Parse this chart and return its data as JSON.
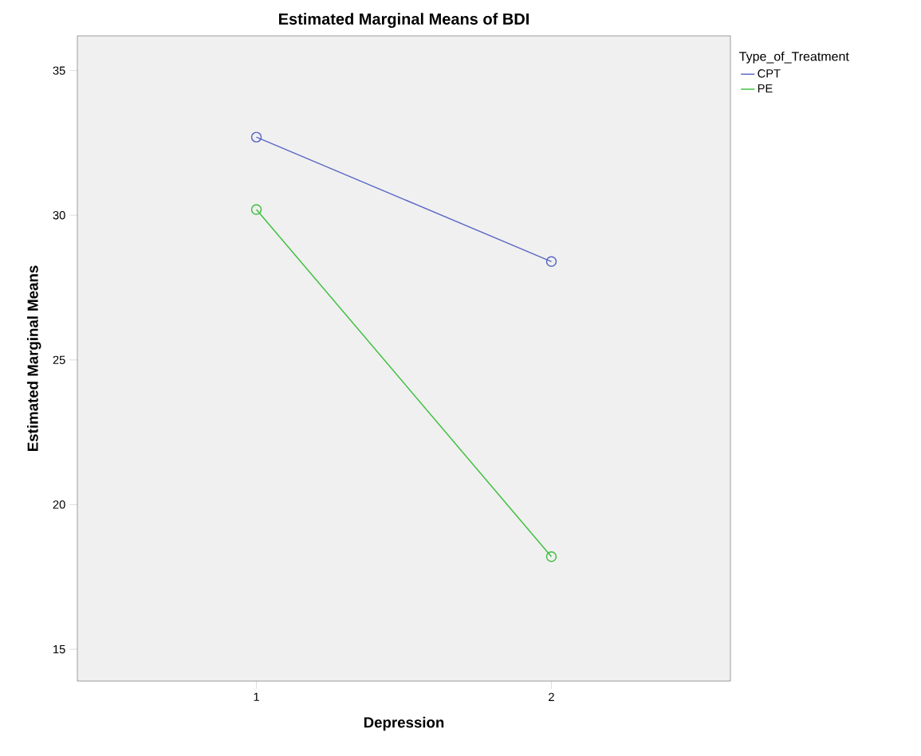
{
  "chart_data": {
    "type": "line",
    "title": "Estimated Marginal Means of BDI",
    "xlabel": "Depression",
    "ylabel": "Estimated Marginal Means",
    "legend_title": "Type_of_Treatment",
    "categories": [
      "1",
      "2"
    ],
    "series": [
      {
        "name": "CPT",
        "color": "#5b67c5",
        "values": [
          32.7,
          28.4
        ]
      },
      {
        "name": "PE",
        "color": "#3fbf3f",
        "values": [
          30.2,
          18.2
        ]
      }
    ],
    "ylim": [
      13.9,
      36.2
    ],
    "yticks": [
      15,
      20,
      25,
      30,
      35
    ],
    "grid": false,
    "legend": "top right",
    "marker": "circle",
    "line_style": "solid"
  }
}
